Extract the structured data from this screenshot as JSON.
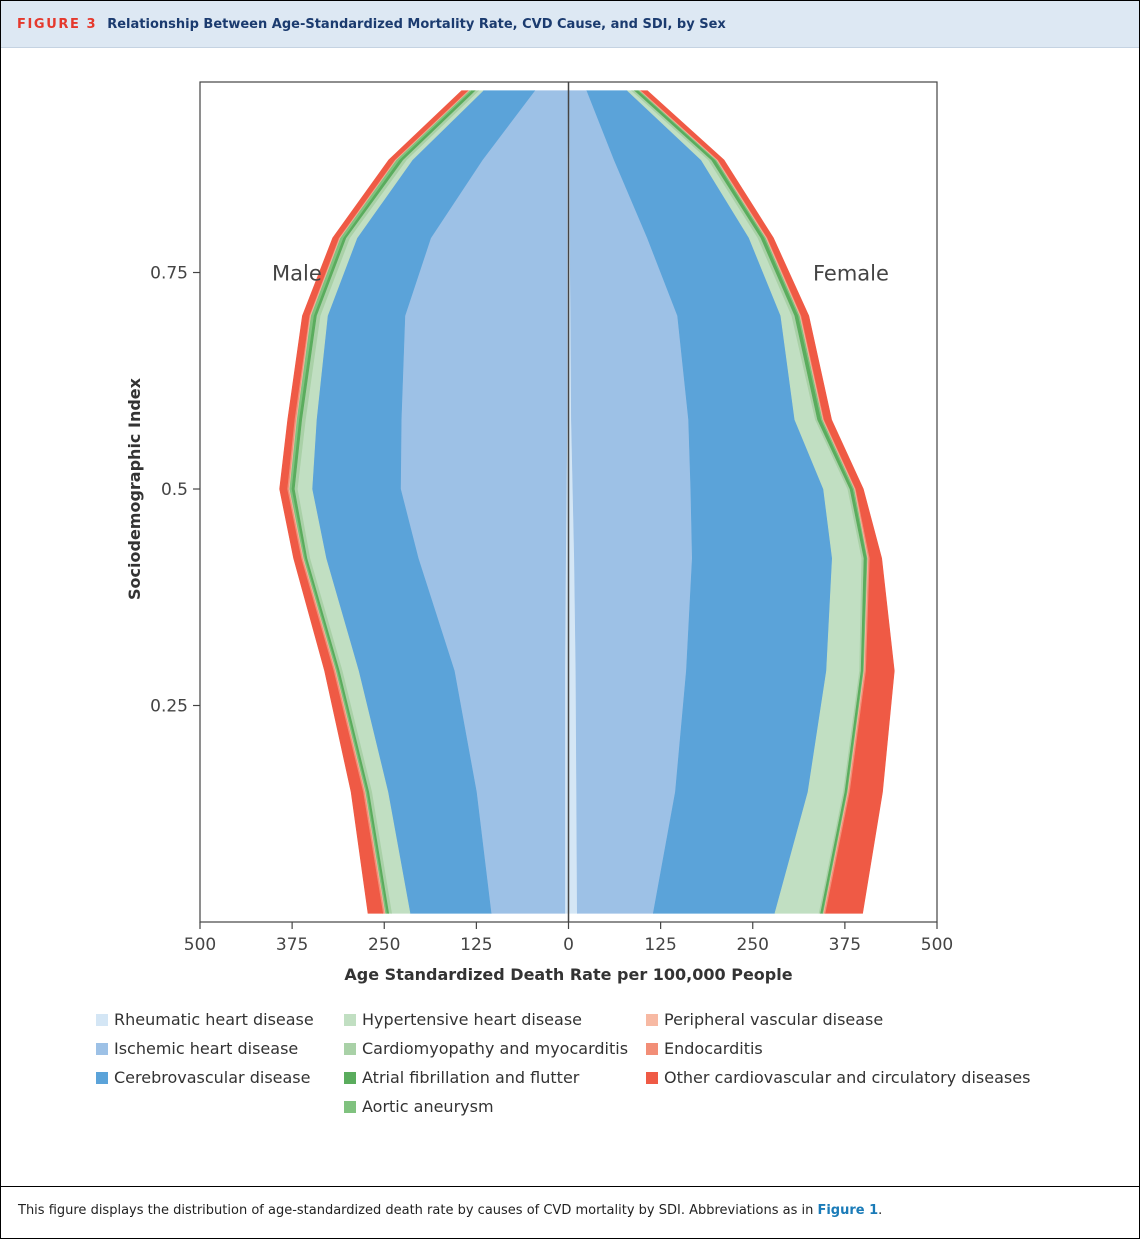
{
  "header": {
    "figure_label": "FIGURE 3",
    "title": "Relationship Between Age-Standardized Mortality Rate, CVD Cause, and SDI, by Sex"
  },
  "caption": {
    "text": "This figure displays the distribution of age-standardized death rate by causes of CVD mortality by SDI. Abbreviations as in ",
    "link": "Figure 1",
    "end": "."
  },
  "chart_data": {
    "type": "area",
    "orientation": "horizontal-population-pyramid",
    "xlabel": "Age Standardized Death Rate per 100,000 People",
    "ylabel": "Sociodemographic Index",
    "x_ticks": [
      500,
      375,
      250,
      125,
      0,
      125,
      250,
      375,
      500
    ],
    "y_ticks": [
      0.25,
      0.5,
      0.75
    ],
    "xlim": [
      -500,
      500
    ],
    "ylim": [
      0.0,
      0.97
    ],
    "panel_labels": [
      "Male",
      "Female"
    ],
    "grid": false,
    "legend_position": "bottom",
    "sdi": [
      0.01,
      0.15,
      0.29,
      0.42,
      0.5,
      0.58,
      0.7,
      0.79,
      0.88,
      0.96
    ],
    "series": [
      {
        "name": "Rheumatic heart disease",
        "color": "#d4e6f5",
        "male": [
          5,
          5,
          5,
          4,
          3,
          2,
          2,
          2,
          2,
          1
        ],
        "female": [
          12,
          11,
          10,
          8,
          6,
          4,
          3,
          2,
          2,
          1
        ]
      },
      {
        "name": "Ischemic heart disease",
        "color": "#9dc1e6",
        "male": [
          100,
          120,
          150,
          200,
          225,
          225,
          220,
          185,
          115,
          45
        ],
        "female": [
          103,
          134,
          150,
          160,
          160,
          159,
          145,
          105,
          60,
          24
        ]
      },
      {
        "name": "Cerebrovascular disease",
        "color": "#5ba3d9",
        "male": [
          110,
          120,
          130,
          125,
          120,
          115,
          105,
          100,
          95,
          70
        ],
        "female": [
          165,
          180,
          190,
          190,
          180,
          144,
          140,
          138,
          118,
          55
        ]
      },
      {
        "name": "Hypertensive heart disease",
        "color": "#c1dfc2",
        "male": [
          25,
          22,
          22,
          22,
          20,
          15,
          10,
          10,
          8,
          6
        ],
        "female": [
          60,
          48,
          45,
          40,
          33,
          28,
          15,
          12,
          10,
          6
        ]
      },
      {
        "name": "Cardiomyopathy and myocarditis",
        "color": "#a9d1a7",
        "male": [
          4,
          4,
          4,
          4,
          4,
          5,
          5,
          5,
          5,
          5
        ],
        "female": [
          2,
          2,
          2,
          3,
          3,
          3,
          4,
          4,
          4,
          4
        ]
      },
      {
        "name": "Atrial fibrillation and flutter",
        "color": "#5aac5d",
        "male": [
          3,
          3,
          3,
          3,
          4,
          4,
          4,
          4,
          5,
          5
        ],
        "female": [
          3,
          3,
          3,
          4,
          4,
          5,
          5,
          5,
          5,
          5
        ]
      },
      {
        "name": "Aortic aneurysm",
        "color": "#80c27f",
        "male": [
          2,
          2,
          2,
          2,
          3,
          3,
          4,
          4,
          4,
          3
        ],
        "female": [
          1,
          1,
          1,
          1,
          2,
          2,
          2,
          2,
          2,
          2
        ]
      },
      {
        "name": "Peripheral vascular disease",
        "color": "#f7b9a3",
        "male": [
          1,
          1,
          1,
          1,
          1,
          1,
          1,
          1,
          1,
          1
        ],
        "female": [
          1,
          1,
          1,
          1,
          1,
          1,
          1,
          1,
          1,
          1
        ]
      },
      {
        "name": "Endocarditis",
        "color": "#f28e77",
        "male": [
          2,
          2,
          2,
          2,
          2,
          2,
          1,
          1,
          1,
          1
        ],
        "female": [
          2,
          2,
          2,
          2,
          1,
          1,
          1,
          1,
          1,
          1
        ]
      },
      {
        "name": "Other cardiovascular and circulatory diseases",
        "color": "#ef5a45",
        "male": [
          20,
          16,
          12,
          10,
          10,
          9,
          9,
          8,
          8,
          8
        ],
        "female": [
          50,
          44,
          38,
          16,
          10,
          10,
          10,
          8,
          8,
          8
        ]
      }
    ]
  }
}
